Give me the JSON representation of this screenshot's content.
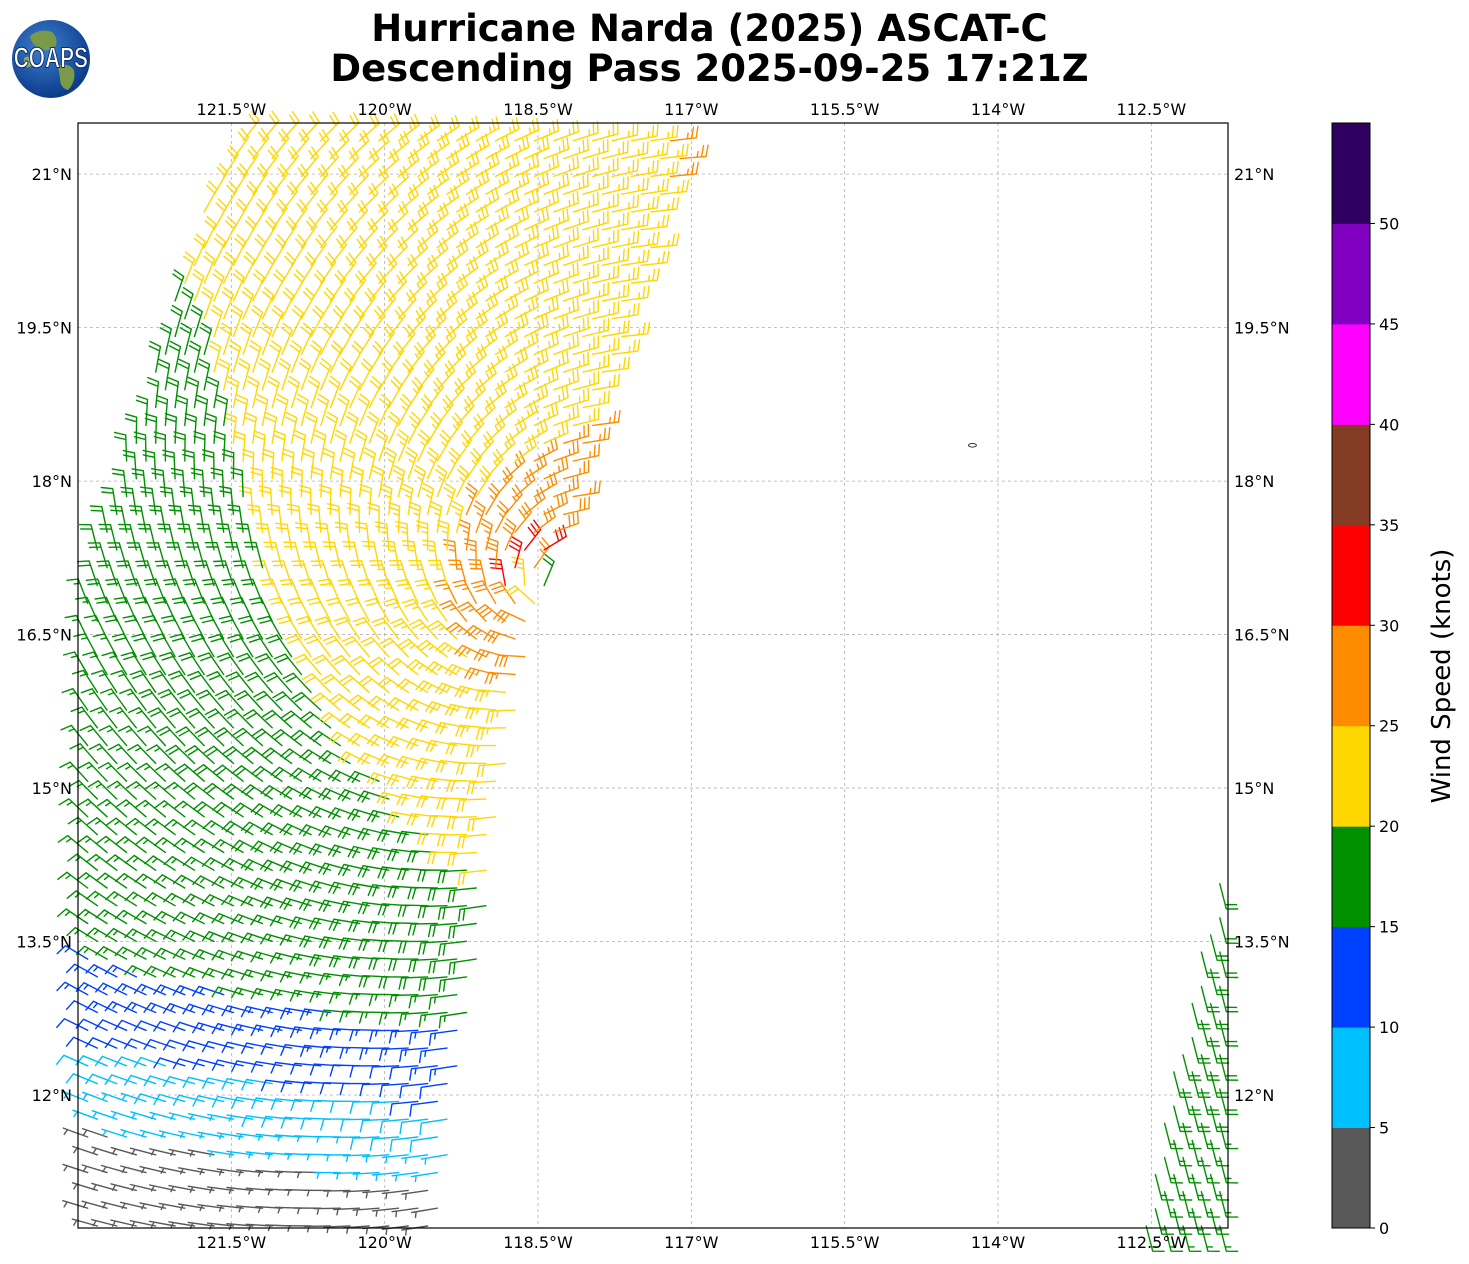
{
  "title": {
    "line1": "Hurricane Narda (2025) ASCAT-C",
    "line2": "Descending Pass 2025-09-25 17:21Z"
  },
  "logo": {
    "text": "COAPS",
    "icon": "globe-logo-icon"
  },
  "chart_data": {
    "type": "wind-barb-map",
    "x_axis": {
      "range": [
        -123.0,
        -111.75
      ],
      "ticks": [
        -121.5,
        -120.0,
        -118.5,
        -117.0,
        -115.5,
        -114.0,
        -112.5
      ],
      "tick_labels": [
        "121.5°W",
        "120°W",
        "118.5°W",
        "117°W",
        "115.5°W",
        "114°W",
        "112.5°W"
      ]
    },
    "y_axis": {
      "range": [
        10.7,
        21.5
      ],
      "ticks": [
        12.0,
        13.5,
        15.0,
        16.5,
        18.0,
        19.5,
        21.0
      ],
      "tick_labels": [
        "12°N",
        "13.5°N",
        "15°N",
        "16.5°N",
        "18°N",
        "19.5°N",
        "21°N"
      ]
    },
    "grid": true,
    "grid_style": "dashed",
    "colorbar": {
      "label": "Wind Speed (knots)",
      "position": "right",
      "bounds": [
        0,
        5,
        10,
        15,
        20,
        25,
        30,
        35,
        40,
        45,
        50,
        55
      ],
      "tick_labels": [
        "0",
        "5",
        "10",
        "15",
        "20",
        "25",
        "30",
        "35",
        "40",
        "45",
        "50"
      ],
      "colors": [
        "#595959",
        "#00bfff",
        "#0040ff",
        "#009000",
        "#ffd700",
        "#ff8c00",
        "#ff0000",
        "#843c24",
        "#ff00ff",
        "#8000c0",
        "#300060"
      ]
    },
    "swaths": [
      {
        "name": "main",
        "edges": [
          [
            -123.0,
            10.72
          ],
          [
            -119.5,
            10.72
          ],
          [
            -118.6,
            16.4
          ],
          [
            -117.0,
            21.5
          ],
          [
            -121.5,
            21.5
          ],
          [
            -123.0,
            16.8
          ]
        ],
        "row_count": 62,
        "col_count": 25
      },
      {
        "name": "east",
        "edges": [
          [
            -112.55,
            10.72
          ],
          [
            -111.75,
            10.72
          ],
          [
            -111.75,
            14.4
          ],
          [
            -112.3,
            12.3
          ]
        ],
        "row_count": 22,
        "col_count": 5
      }
    ],
    "wind_field_model": {
      "center_lon": -118.35,
      "center_lat": 16.9,
      "peak_speed_kt": 31,
      "radius_of_max_wind_deg": 0.45,
      "background_speed_kt": 19
    },
    "island_marker": [
      -114.25,
      18.35
    ]
  }
}
